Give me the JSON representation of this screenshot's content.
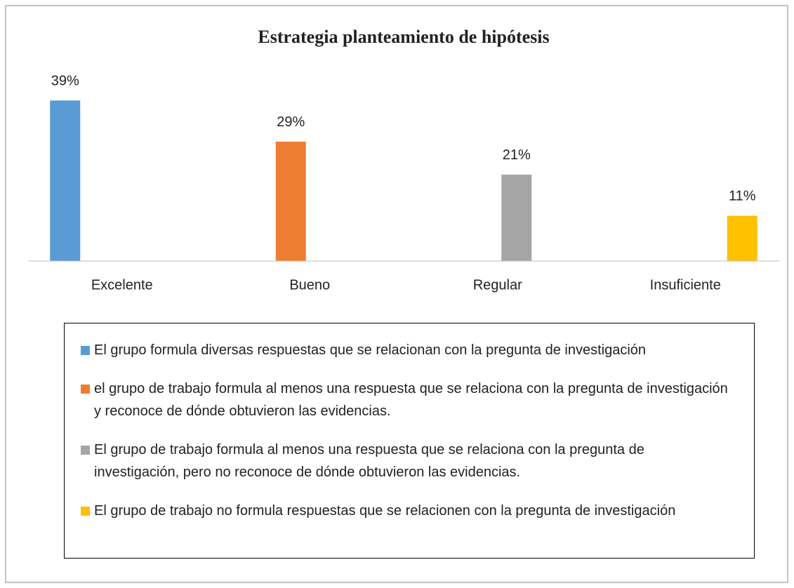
{
  "chart_data": {
    "type": "bar",
    "title": "Estrategia planteamiento de hipótesis",
    "categories": [
      "Excelente",
      "Bueno",
      "Regular",
      "Insuficiente"
    ],
    "series": [
      {
        "name": "El grupo formula diversas respuestas que se relacionan con la pregunta de investigación",
        "color": "#5b9bd5",
        "values": [
          39,
          null,
          null,
          null
        ],
        "value_labels": [
          "39%",
          null,
          null,
          null
        ]
      },
      {
        "name": "el grupo de trabajo formula al menos una respuesta que se relaciona con la pregunta de investigación y reconoce de dónde obtuvieron las evidencias.",
        "color": "#ed7d31",
        "values": [
          null,
          29,
          null,
          null
        ],
        "value_labels": [
          null,
          "29%",
          null,
          null
        ]
      },
      {
        "name": "El grupo de trabajo formula al menos una respuesta que se relaciona con la pregunta de investigación, pero no reconoce de dónde obtuvieron las evidencias.",
        "color": "#a5a5a5",
        "values": [
          null,
          null,
          21,
          null
        ],
        "value_labels": [
          null,
          null,
          "21%",
          null
        ]
      },
      {
        "name": "El grupo de trabajo no formula respuestas que se relacionen con la pregunta de investigación",
        "color": "#ffc000",
        "values": [
          null,
          null,
          null,
          11
        ],
        "value_labels": [
          null,
          null,
          null,
          "11%"
        ]
      }
    ],
    "ylim": [
      0,
      45
    ]
  }
}
